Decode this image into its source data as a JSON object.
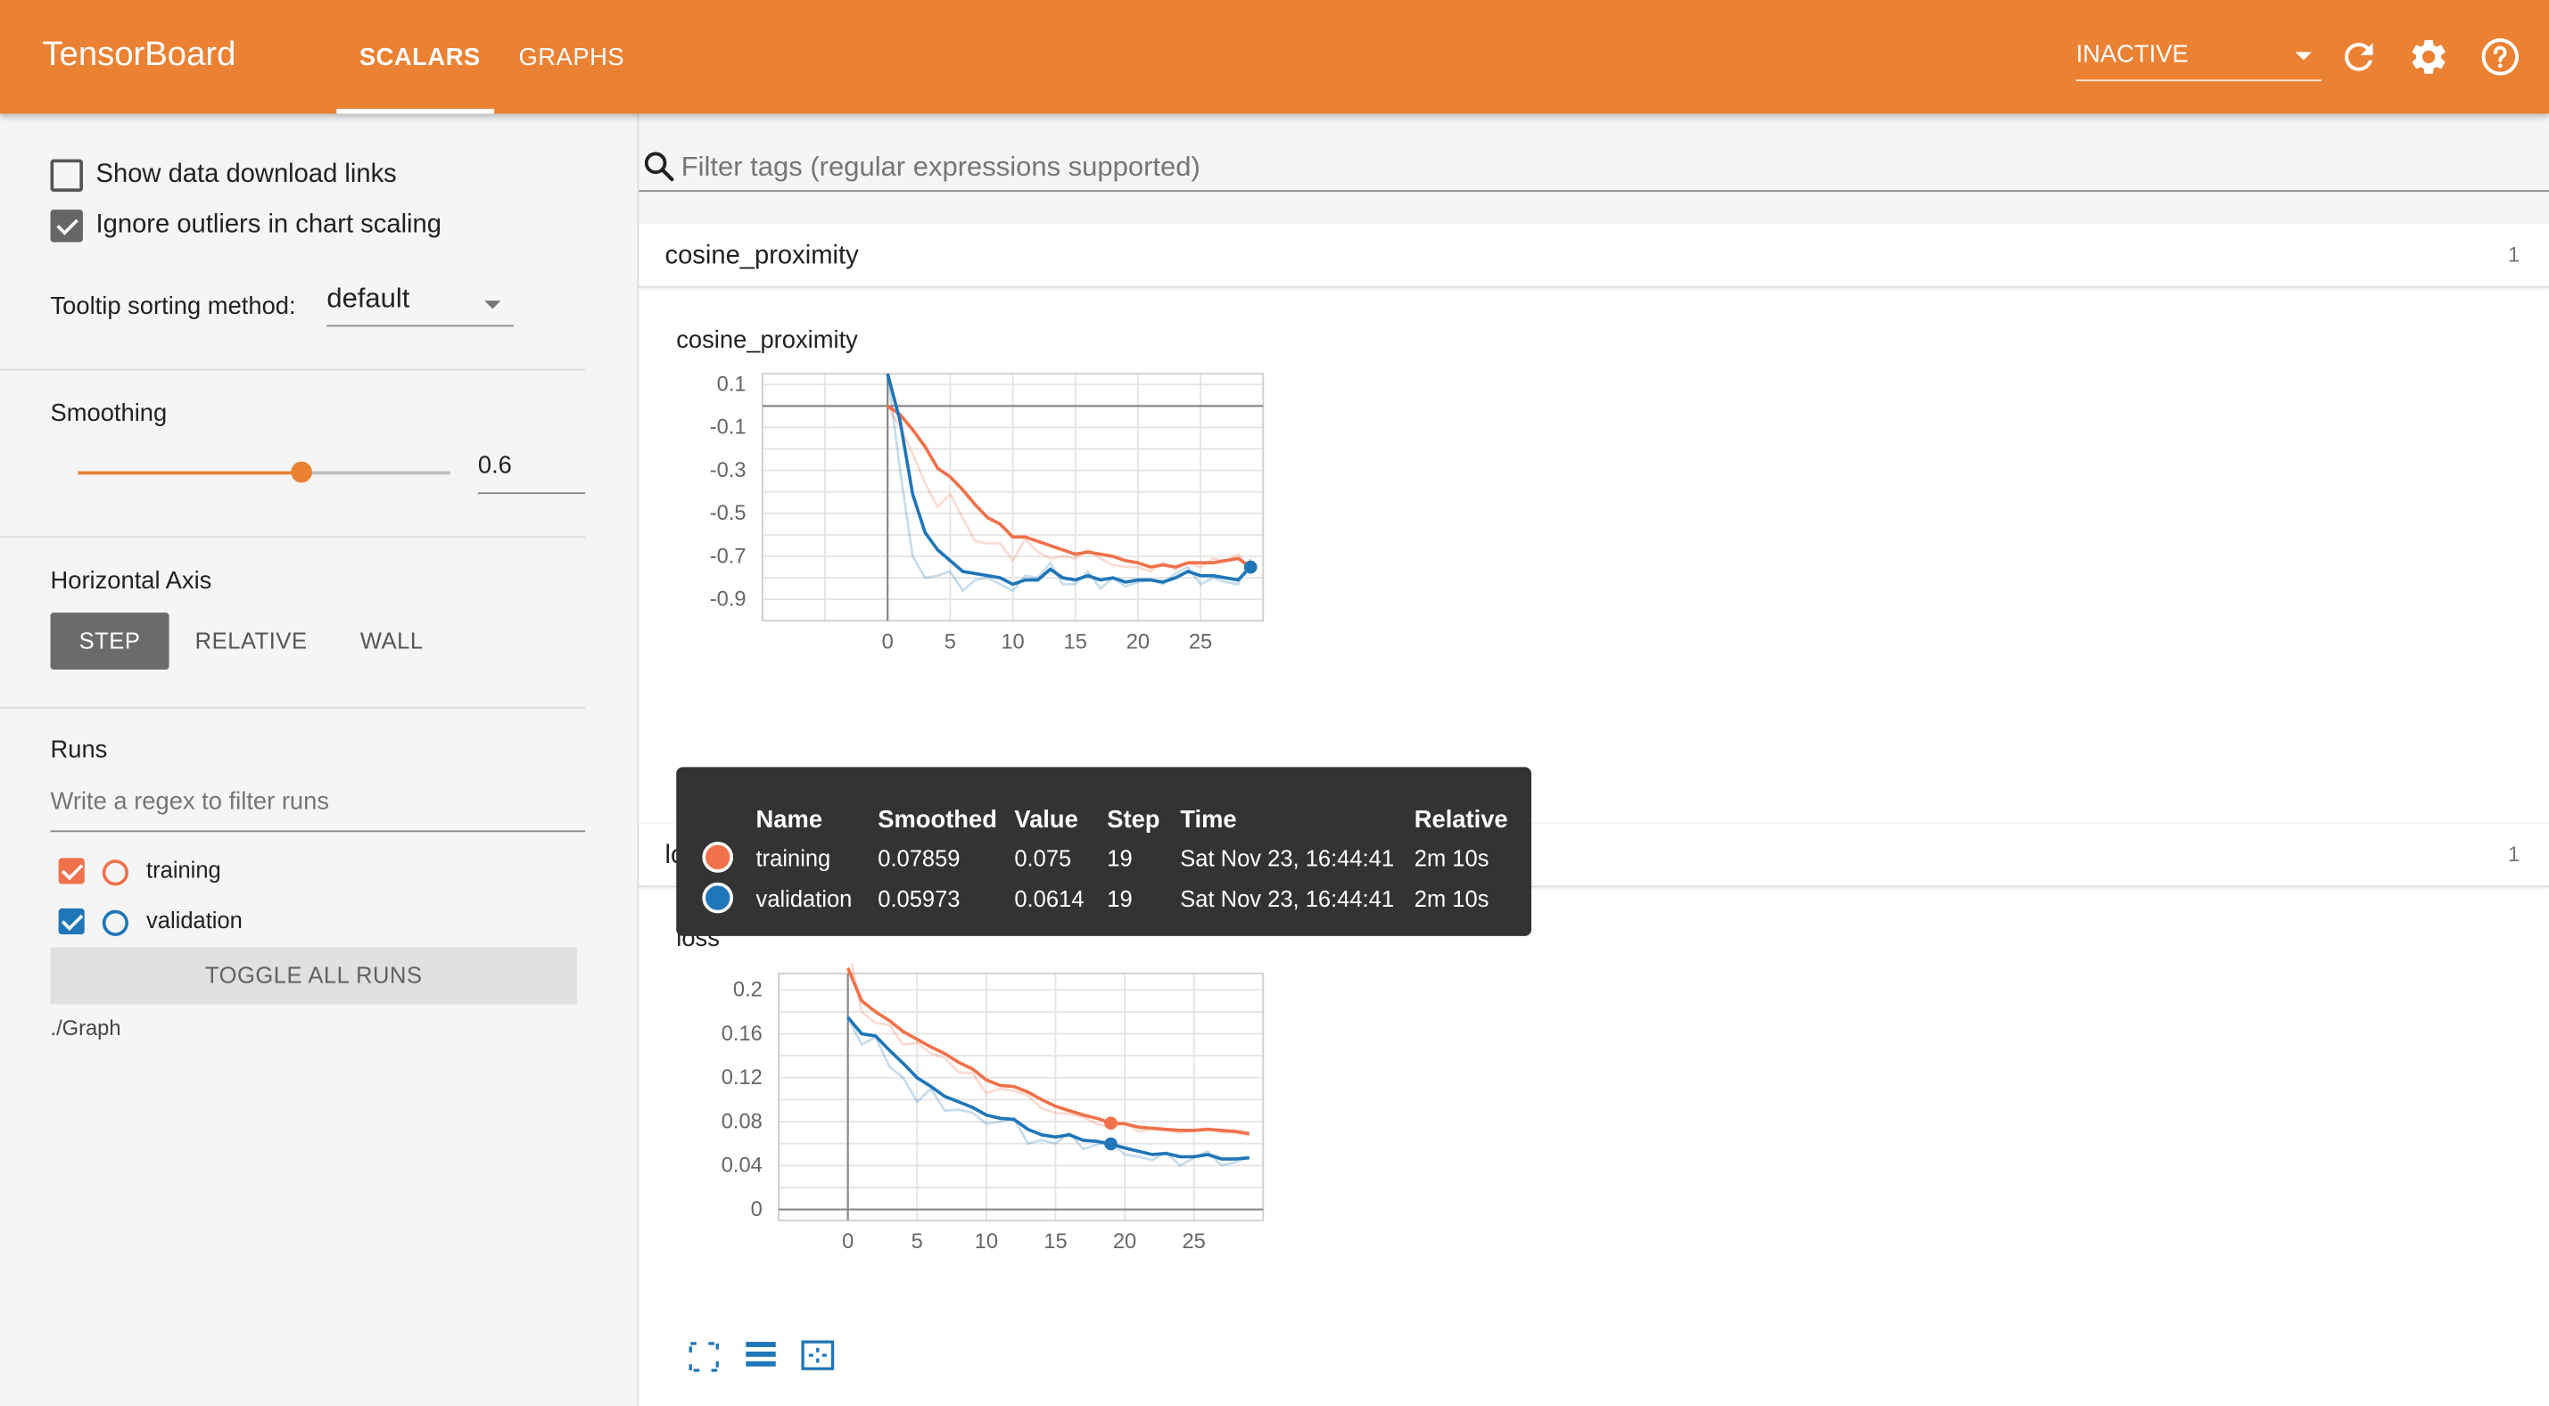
{
  "app": {
    "title": "TensorBoard"
  },
  "header": {
    "tabs": [
      {
        "label": "SCALARS",
        "active": true
      },
      {
        "label": "GRAPHS",
        "active": false
      }
    ],
    "run_select": "INACTIVE",
    "icons": [
      "refresh-icon",
      "settings-icon",
      "help-icon"
    ]
  },
  "sidebar": {
    "show_download_links": {
      "label": "Show data download links",
      "checked": false
    },
    "ignore_outliers": {
      "label": "Ignore outliers in chart scaling",
      "checked": true
    },
    "tooltip_sorting": {
      "label": "Tooltip sorting method:",
      "value": "default"
    },
    "smoothing": {
      "label": "Smoothing",
      "value": "0.6",
      "fraction": 0.6
    },
    "horizontal_axis": {
      "label": "Horizontal Axis",
      "options": [
        "STEP",
        "RELATIVE",
        "WALL"
      ],
      "selected": "STEP"
    },
    "runs": {
      "label": "Runs",
      "filter_placeholder": "Write a regex to filter runs",
      "items": [
        {
          "name": "training",
          "checked": true,
          "color": "#f0714a"
        },
        {
          "name": "validation",
          "checked": true,
          "color": "#1f76b8"
        }
      ],
      "toggle_label": "TOGGLE ALL RUNS",
      "log_dir": "./Graph"
    }
  },
  "main": {
    "filter_placeholder": "Filter tags (regular expressions supported)",
    "cards": [
      {
        "tag": "cosine_proximity",
        "count": "1"
      },
      {
        "tag": "loss",
        "count": "1"
      }
    ]
  },
  "tooltip": {
    "headers": [
      "Name",
      "Smoothed",
      "Value",
      "Step",
      "Time",
      "Relative"
    ],
    "rows": [
      {
        "name": "training",
        "smoothed": "0.07859",
        "value": "0.075",
        "step": "19",
        "time": "Sat Nov 23, 16:44:41",
        "relative": "2m 10s",
        "color": "#f0714a"
      },
      {
        "name": "validation",
        "smoothed": "0.05973",
        "value": "0.0614",
        "step": "19",
        "time": "Sat Nov 23, 16:44:41",
        "relative": "2m 10s",
        "color": "#1f76b8"
      }
    ]
  },
  "chart_data": [
    {
      "type": "line",
      "title": "cosine_proximity",
      "xlabel": "",
      "ylabel": "",
      "xlim": [
        -10,
        30
      ],
      "ylim": [
        -1.0,
        0.15
      ],
      "xticks": [
        0,
        5,
        10,
        15,
        20,
        25
      ],
      "yticks": [
        0.1,
        -0.1,
        -0.3,
        -0.5,
        -0.7,
        -0.9
      ],
      "ytick_labels": [
        "0.1",
        "-0.1",
        "-0.3",
        "-0.5",
        "-0.7",
        "-0.9"
      ],
      "grid": true,
      "x": [
        0,
        1,
        2,
        3,
        4,
        5,
        6,
        7,
        8,
        9,
        10,
        11,
        12,
        13,
        14,
        15,
        16,
        17,
        18,
        19,
        20,
        21,
        22,
        23,
        24,
        25,
        26,
        27,
        28,
        29
      ],
      "series": [
        {
          "name": "training",
          "color": "#f0714a",
          "smoothed": [
            0.0,
            -0.04,
            -0.11,
            -0.19,
            -0.29,
            -0.33,
            -0.39,
            -0.46,
            -0.52,
            -0.55,
            -0.61,
            -0.61,
            -0.63,
            -0.65,
            -0.67,
            -0.69,
            -0.68,
            -0.69,
            -0.7,
            -0.72,
            -0.73,
            -0.75,
            -0.74,
            -0.75,
            -0.73,
            -0.73,
            -0.73,
            -0.72,
            -0.71,
            -0.75
          ],
          "raw": [
            0.0,
            -0.1,
            -0.22,
            -0.36,
            -0.47,
            -0.41,
            -0.52,
            -0.63,
            -0.64,
            -0.64,
            -0.72,
            -0.62,
            -0.68,
            -0.71,
            -0.7,
            -0.71,
            -0.67,
            -0.71,
            -0.74,
            -0.75,
            -0.75,
            -0.77,
            -0.73,
            -0.76,
            -0.73,
            -0.75,
            -0.71,
            -0.72,
            -0.69,
            -0.76
          ]
        },
        {
          "name": "validation",
          "color": "#1f76b8",
          "smoothed": [
            0.15,
            -0.07,
            -0.41,
            -0.59,
            -0.67,
            -0.72,
            -0.77,
            -0.78,
            -0.79,
            -0.8,
            -0.83,
            -0.81,
            -0.81,
            -0.76,
            -0.8,
            -0.81,
            -0.79,
            -0.81,
            -0.8,
            -0.82,
            -0.81,
            -0.81,
            -0.82,
            -0.8,
            -0.77,
            -0.79,
            -0.79,
            -0.8,
            -0.81,
            -0.75
          ],
          "raw": [
            0.15,
            -0.3,
            -0.7,
            -0.8,
            -0.79,
            -0.77,
            -0.86,
            -0.81,
            -0.8,
            -0.83,
            -0.86,
            -0.79,
            -0.8,
            -0.73,
            -0.83,
            -0.83,
            -0.77,
            -0.85,
            -0.8,
            -0.84,
            -0.82,
            -0.81,
            -0.83,
            -0.78,
            -0.75,
            -0.83,
            -0.8,
            -0.82,
            -0.83,
            -0.71
          ]
        }
      ]
    },
    {
      "type": "line",
      "title": "loss",
      "xlabel": "",
      "ylabel": "",
      "xlim": [
        -5,
        30
      ],
      "ylim": [
        -0.01,
        0.215
      ],
      "xticks": [
        0,
        5,
        10,
        15,
        20,
        25
      ],
      "yticks": [
        0.2,
        0.16,
        0.12,
        0.08,
        0.04,
        0
      ],
      "ytick_labels": [
        "0.2",
        "0.16",
        "0.12",
        "0.08",
        "0.04",
        "0"
      ],
      "grid": true,
      "x": [
        0,
        1,
        2,
        3,
        4,
        5,
        6,
        7,
        8,
        9,
        10,
        11,
        12,
        13,
        14,
        15,
        16,
        17,
        18,
        19,
        20,
        21,
        22,
        23,
        24,
        25,
        26,
        27,
        28,
        29
      ],
      "series": [
        {
          "name": "training",
          "color": "#f0714a",
          "smoothed": [
            0.22,
            0.19,
            0.18,
            0.172,
            0.162,
            0.155,
            0.148,
            0.142,
            0.134,
            0.128,
            0.118,
            0.113,
            0.112,
            0.107,
            0.1,
            0.094,
            0.09,
            0.086,
            0.083,
            0.0786,
            0.078,
            0.075,
            0.074,
            0.073,
            0.072,
            0.072,
            0.073,
            0.072,
            0.071,
            0.069
          ],
          "raw": [
            0.24,
            0.18,
            0.17,
            0.168,
            0.15,
            0.152,
            0.142,
            0.138,
            0.125,
            0.124,
            0.106,
            0.11,
            0.108,
            0.104,
            0.092,
            0.088,
            0.087,
            0.084,
            0.078,
            0.075,
            0.079,
            0.071,
            0.073,
            0.072,
            0.07,
            0.072,
            0.074,
            0.07,
            0.07,
            0.067
          ]
        },
        {
          "name": "validation",
          "color": "#1f76b8",
          "smoothed": [
            0.175,
            0.16,
            0.158,
            0.145,
            0.133,
            0.12,
            0.112,
            0.103,
            0.098,
            0.093,
            0.086,
            0.083,
            0.082,
            0.073,
            0.068,
            0.066,
            0.068,
            0.063,
            0.062,
            0.0597,
            0.056,
            0.053,
            0.05,
            0.051,
            0.048,
            0.048,
            0.05,
            0.046,
            0.046,
            0.047
          ],
          "raw": [
            0.175,
            0.15,
            0.157,
            0.13,
            0.12,
            0.098,
            0.11,
            0.09,
            0.091,
            0.088,
            0.078,
            0.08,
            0.083,
            0.06,
            0.063,
            0.06,
            0.07,
            0.055,
            0.059,
            0.0614,
            0.05,
            0.048,
            0.045,
            0.052,
            0.04,
            0.047,
            0.053,
            0.04,
            0.043,
            0.048
          ]
        }
      ]
    }
  ]
}
